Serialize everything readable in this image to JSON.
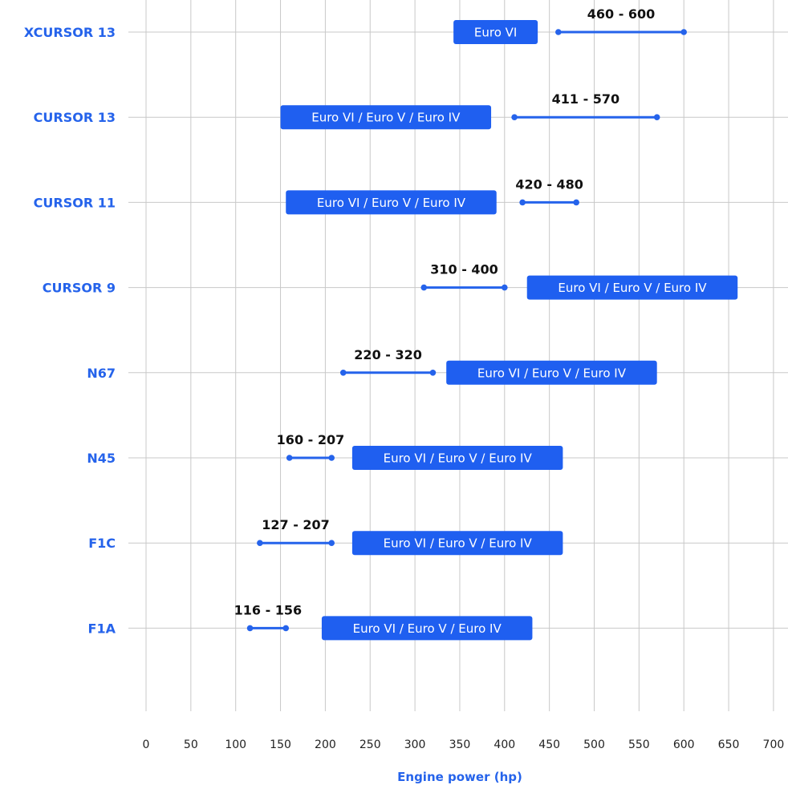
{
  "colors": {
    "accent": "#2563eb",
    "badge": "#1f5ff0",
    "grid": "#c8c8c8",
    "text": "#111111"
  },
  "chart_data": {
    "type": "range-bar",
    "title": "",
    "xlabel": "Engine power (hp)",
    "ylabel": "",
    "xlim": [
      0,
      700
    ],
    "xticks": [
      0,
      50,
      100,
      150,
      200,
      250,
      300,
      350,
      400,
      450,
      500,
      550,
      600,
      650,
      700
    ],
    "grid": true,
    "engines": [
      {
        "name": "XCURSOR 13",
        "label": "460 - 600",
        "min": 460,
        "max": 600,
        "badge": "Euro VI",
        "badge_from": 343,
        "badge_to": 437
      },
      {
        "name": "CURSOR 13",
        "label": "411 - 570",
        "min": 411,
        "max": 570,
        "badge": "Euro VI / Euro V / Euro IV",
        "badge_from": 150,
        "badge_to": 385
      },
      {
        "name": "CURSOR 11",
        "label": "420 - 480",
        "min": 420,
        "max": 480,
        "badge": "Euro VI / Euro V / Euro IV",
        "badge_from": 156,
        "badge_to": 391
      },
      {
        "name": "CURSOR 9",
        "label": "310 - 400",
        "min": 310,
        "max": 400,
        "badge": "Euro VI / Euro V / Euro IV",
        "badge_from": 425,
        "badge_to": 660
      },
      {
        "name": "N67",
        "label": "220 - 320",
        "min": 220,
        "max": 320,
        "badge": "Euro VI / Euro V / Euro IV",
        "badge_from": 335,
        "badge_to": 570
      },
      {
        "name": "N45",
        "label": "160 - 207",
        "min": 160,
        "max": 207,
        "badge": "Euro VI / Euro V / Euro IV",
        "badge_from": 230,
        "badge_to": 465
      },
      {
        "name": "F1C",
        "label": "127 - 207",
        "min": 127,
        "max": 207,
        "badge": "Euro VI / Euro V / Euro IV",
        "badge_from": 230,
        "badge_to": 465
      },
      {
        "name": "F1A",
        "label": "116 - 156",
        "min": 116,
        "max": 156,
        "badge": "Euro VI / Euro V / Euro IV",
        "badge_from": 196,
        "badge_to": 431
      }
    ]
  }
}
